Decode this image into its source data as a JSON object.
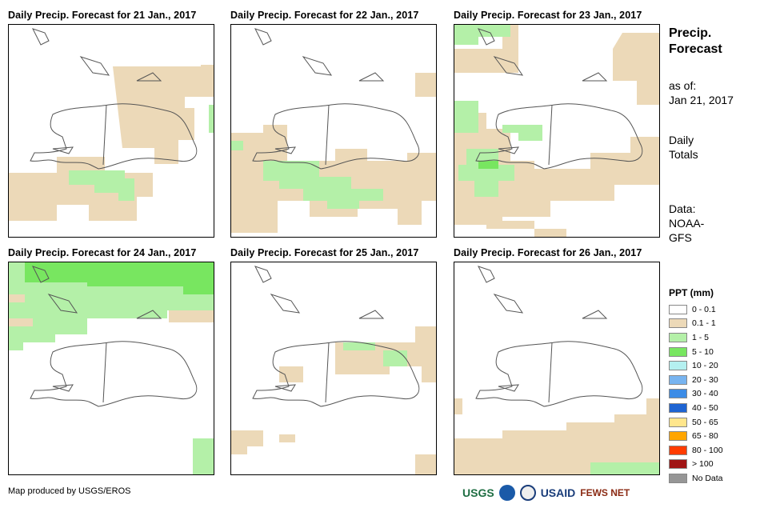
{
  "panels": [
    {
      "title": "Daily Precip. Forecast for 21 Jan., 2017"
    },
    {
      "title": "Daily Precip. Forecast for 22 Jan., 2017"
    },
    {
      "title": "Daily Precip. Forecast for 23 Jan., 2017"
    },
    {
      "title": "Daily Precip. Forecast for 24 Jan., 2017"
    },
    {
      "title": "Daily Precip. Forecast for 25 Jan., 2017"
    },
    {
      "title": "Daily Precip. Forecast for 26 Jan., 2017"
    }
  ],
  "side": {
    "title": "Precip. Forecast",
    "as_of_label": "as of:",
    "as_of_date": "Jan 21, 2017",
    "totals_label": "Daily Totals",
    "data_label": "Data: NOAA-GFS"
  },
  "legend": {
    "title": "PPT (mm)",
    "items": [
      {
        "label": "0 - 0.1",
        "color": "#ffffff"
      },
      {
        "label": "0.1 - 1",
        "color": "#ecd9b8"
      },
      {
        "label": "1 - 5",
        "color": "#b4f0a8"
      },
      {
        "label": "5 - 10",
        "color": "#78e660"
      },
      {
        "label": "10 - 20",
        "color": "#b4f0f0"
      },
      {
        "label": "20 - 30",
        "color": "#78b4f0"
      },
      {
        "label": "30 - 40",
        "color": "#3c8ce6"
      },
      {
        "label": "40 - 50",
        "color": "#1e64d2"
      },
      {
        "label": "50 - 65",
        "color": "#ffe68c"
      },
      {
        "label": "65 - 80",
        "color": "#ffa500"
      },
      {
        "label": "80 - 100",
        "color": "#ff3c00"
      },
      {
        "label": "> 100",
        "color": "#a01414"
      },
      {
        "label": "No Data",
        "color": "#969696"
      }
    ]
  },
  "footer": {
    "credit": "Map produced by USGS/EROS"
  },
  "logos": [
    "USGS",
    "NOAA",
    "USAID",
    "FEWS NET"
  ]
}
